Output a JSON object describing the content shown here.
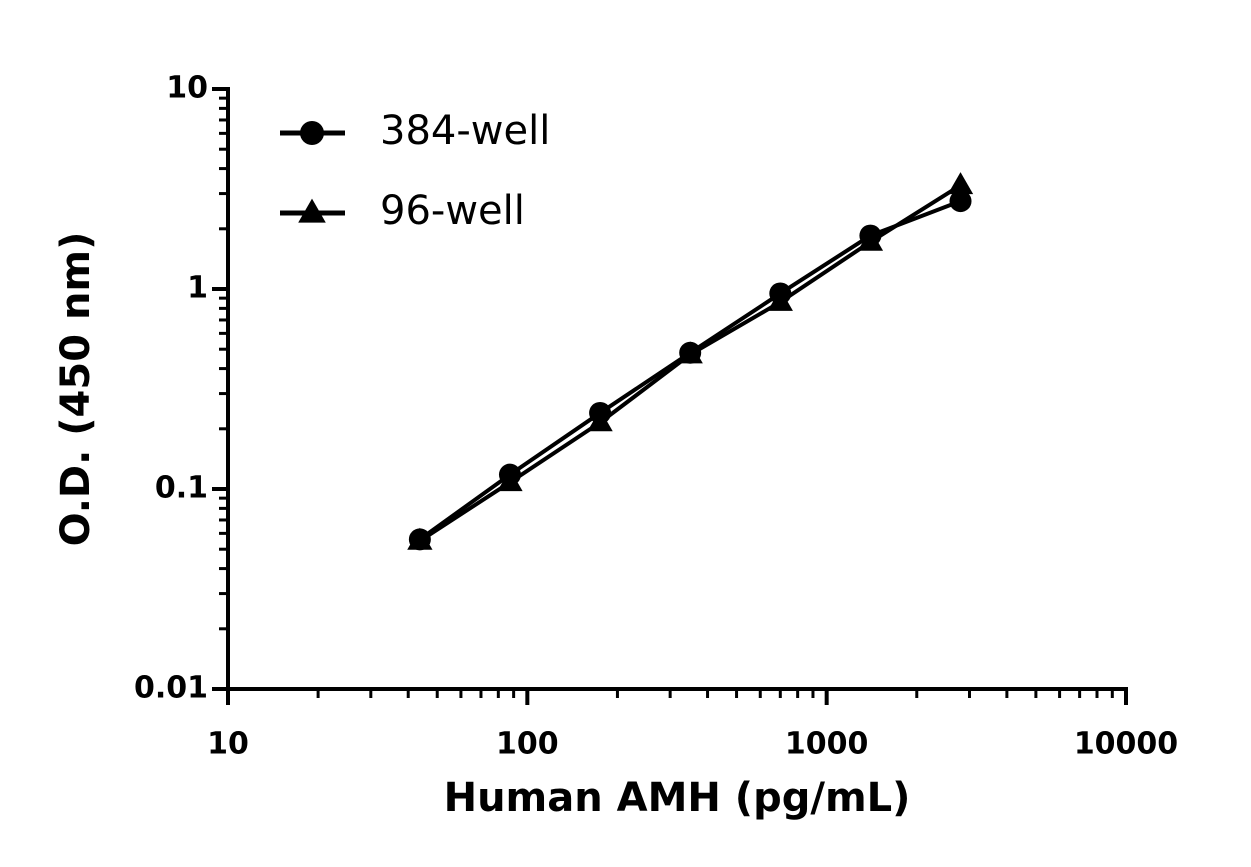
{
  "chart_data": {
    "type": "line",
    "xlabel": "Human AMH (pg/mL)",
    "ylabel": "O.D. (450 nm)",
    "x": [
      43.75,
      87.5,
      175,
      350,
      700,
      1400,
      2800
    ],
    "series": [
      {
        "name": "384-well",
        "color": "#000000",
        "marker": "circle",
        "values": [
          0.056,
          0.118,
          0.24,
          0.48,
          0.95,
          1.85,
          2.75
        ]
      },
      {
        "name": "96-well",
        "color": "#000000",
        "marker": "triangle",
        "values": [
          0.055,
          0.108,
          0.215,
          0.47,
          0.86,
          1.72,
          3.3
        ]
      }
    ],
    "xscale": "log",
    "yscale": "log",
    "xlim": [
      10,
      10000
    ],
    "xticks": [
      10,
      100,
      1000,
      10000
    ],
    "ylim": [
      0.01,
      10
    ],
    "yticks": [
      0.01,
      0.1,
      1,
      10
    ],
    "legend": "upper left"
  }
}
